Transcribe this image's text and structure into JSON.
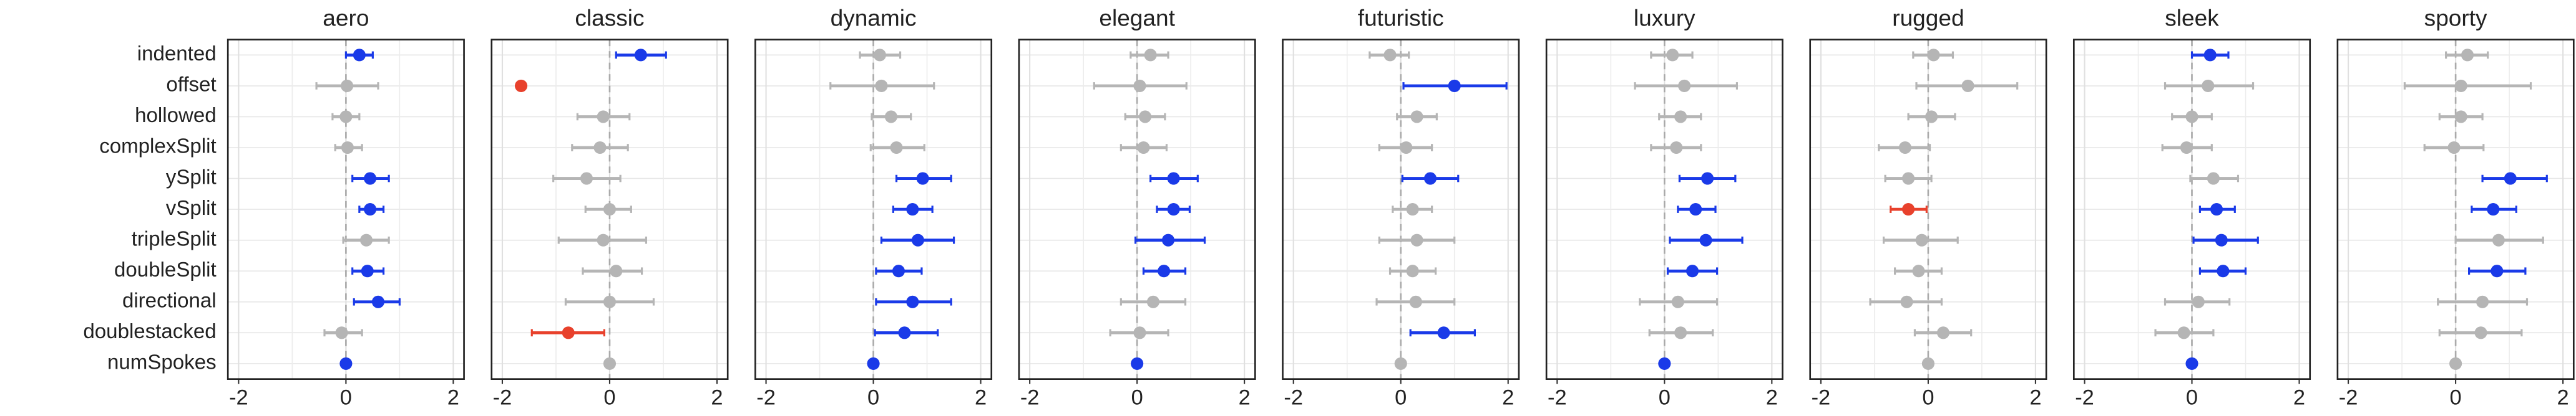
{
  "chart_data": {
    "type": "forest",
    "categories": [
      "indented",
      "offset",
      "hollowed",
      "complexSplit",
      "ySplit",
      "vSplit",
      "tripleSplit",
      "doubleSplit",
      "directional",
      "doublestacked",
      "numSpokes"
    ],
    "xlim": [
      -2.2,
      2.2
    ],
    "xticks": [
      -2,
      0,
      2
    ],
    "grid": true,
    "panels": [
      {
        "title": "aero",
        "values": [
          0.25,
          0.02,
          0.0,
          0.03,
          0.45,
          0.45,
          0.38,
          0.4,
          0.6,
          -0.08,
          0
        ],
        "lo": [
          0.0,
          -0.55,
          -0.25,
          -0.2,
          0.12,
          0.25,
          -0.05,
          0.12,
          0.15,
          -0.4,
          null
        ],
        "hi": [
          0.5,
          0.6,
          0.25,
          0.3,
          0.8,
          0.7,
          0.8,
          0.7,
          1.0,
          0.3,
          null
        ],
        "colors": [
          "#1a3ae8",
          "#b5b5b5",
          "#b5b5b5",
          "#b5b5b5",
          "#1a3ae8",
          "#1a3ae8",
          "#b5b5b5",
          "#1a3ae8",
          "#1a3ae8",
          "#b5b5b5",
          "#1a3ae8"
        ]
      },
      {
        "title": "classic",
        "values": [
          0.58,
          -1.65,
          -0.12,
          -0.18,
          -0.43,
          0.0,
          -0.12,
          0.12,
          0,
          -0.77,
          0
        ],
        "lo": [
          0.12,
          null,
          -0.6,
          -0.7,
          -1.05,
          -0.45,
          -0.95,
          -0.5,
          -0.82,
          -1.45,
          null
        ],
        "hi": [
          1.05,
          null,
          0.37,
          0.34,
          0.2,
          0.4,
          0.68,
          0.6,
          0.82,
          -0.1,
          null
        ],
        "colors": [
          "#1a3ae8",
          "#e8412c",
          "#b5b5b5",
          "#b5b5b5",
          "#b5b5b5",
          "#b5b5b5",
          "#b5b5b5",
          "#b5b5b5",
          "#b5b5b5",
          "#e8412c",
          "#b5b5b5"
        ]
      },
      {
        "title": "dynamic",
        "values": [
          0.12,
          0.15,
          0.33,
          0.43,
          0.92,
          0.73,
          0.83,
          0.47,
          0.73,
          0.58,
          0
        ],
        "lo": [
          -0.25,
          -0.8,
          -0.03,
          -0.05,
          0.43,
          0.37,
          0.15,
          0.05,
          0.05,
          0.03,
          null
        ],
        "hi": [
          0.5,
          1.13,
          0.7,
          0.95,
          1.45,
          1.1,
          1.5,
          0.9,
          1.45,
          1.2,
          null
        ],
        "colors": [
          "#b5b5b5",
          "#b5b5b5",
          "#b5b5b5",
          "#b5b5b5",
          "#1a3ae8",
          "#1a3ae8",
          "#1a3ae8",
          "#1a3ae8",
          "#1a3ae8",
          "#1a3ae8",
          "#1a3ae8"
        ]
      },
      {
        "title": "elegant",
        "values": [
          0.25,
          0.05,
          0.15,
          0.12,
          0.68,
          0.68,
          0.58,
          0.5,
          0.3,
          0.05,
          0
        ],
        "lo": [
          -0.12,
          -0.8,
          -0.22,
          -0.3,
          0.25,
          0.37,
          -0.03,
          0.12,
          -0.3,
          -0.5,
          null
        ],
        "hi": [
          0.58,
          0.92,
          0.52,
          0.55,
          1.13,
          0.98,
          1.26,
          0.9,
          0.9,
          0.58,
          null
        ],
        "colors": [
          "#b5b5b5",
          "#b5b5b5",
          "#b5b5b5",
          "#b5b5b5",
          "#1a3ae8",
          "#1a3ae8",
          "#1a3ae8",
          "#1a3ae8",
          "#b5b5b5",
          "#b5b5b5",
          "#1a3ae8"
        ]
      },
      {
        "title": "futuristic",
        "values": [
          -0.2,
          1.0,
          0.3,
          0.1,
          0.55,
          0.22,
          0.3,
          0.22,
          0.28,
          0.8,
          0
        ],
        "lo": [
          -0.58,
          0.05,
          -0.07,
          -0.4,
          0.03,
          -0.15,
          -0.4,
          -0.2,
          -0.45,
          0.18,
          null
        ],
        "hi": [
          0.15,
          1.97,
          0.67,
          0.58,
          1.07,
          0.58,
          1.0,
          0.65,
          1.0,
          1.38,
          null
        ],
        "colors": [
          "#b5b5b5",
          "#1a3ae8",
          "#b5b5b5",
          "#b5b5b5",
          "#1a3ae8",
          "#b5b5b5",
          "#b5b5b5",
          "#b5b5b5",
          "#b5b5b5",
          "#1a3ae8",
          "#b5b5b5"
        ]
      },
      {
        "title": "luxury",
        "values": [
          0.15,
          0.37,
          0.3,
          0.22,
          0.8,
          0.58,
          0.77,
          0.52,
          0.25,
          0.3,
          0
        ],
        "lo": [
          -0.25,
          -0.55,
          -0.1,
          -0.25,
          0.28,
          0.25,
          0.1,
          0.06,
          -0.46,
          -0.28,
          null
        ],
        "hi": [
          0.52,
          1.35,
          0.68,
          0.68,
          1.32,
          0.95,
          1.45,
          0.98,
          0.98,
          0.9,
          null
        ],
        "colors": [
          "#b5b5b5",
          "#b5b5b5",
          "#b5b5b5",
          "#b5b5b5",
          "#1a3ae8",
          "#1a3ae8",
          "#1a3ae8",
          "#1a3ae8",
          "#b5b5b5",
          "#b5b5b5",
          "#1a3ae8"
        ]
      },
      {
        "title": "rugged",
        "values": [
          0.1,
          0.74,
          0.06,
          -0.43,
          -0.37,
          -0.37,
          -0.12,
          -0.18,
          -0.4,
          0.28,
          0
        ],
        "lo": [
          -0.28,
          -0.22,
          -0.37,
          -0.92,
          -0.8,
          -0.7,
          -0.83,
          -0.62,
          -1.08,
          -0.25,
          null
        ],
        "hi": [
          0.46,
          1.66,
          0.5,
          0.03,
          0.06,
          -0.03,
          0.55,
          0.25,
          0.25,
          0.8,
          null
        ],
        "colors": [
          "#b5b5b5",
          "#b5b5b5",
          "#b5b5b5",
          "#b5b5b5",
          "#b5b5b5",
          "#e8412c",
          "#b5b5b5",
          "#b5b5b5",
          "#b5b5b5",
          "#b5b5b5",
          "#b5b5b5"
        ]
      },
      {
        "title": "sleek",
        "values": [
          0.34,
          0.3,
          0,
          -0.1,
          0.4,
          0.46,
          0.55,
          0.58,
          0.12,
          -0.15,
          0
        ],
        "lo": [
          0.0,
          -0.5,
          -0.37,
          -0.55,
          -0.03,
          0.15,
          0.03,
          0.15,
          -0.5,
          -0.68,
          null
        ],
        "hi": [
          0.68,
          1.14,
          0.37,
          0.37,
          0.86,
          0.8,
          1.23,
          1.0,
          0.7,
          0.4,
          null
        ],
        "colors": [
          "#1a3ae8",
          "#b5b5b5",
          "#b5b5b5",
          "#b5b5b5",
          "#b5b5b5",
          "#1a3ae8",
          "#1a3ae8",
          "#1a3ae8",
          "#b5b5b5",
          "#b5b5b5",
          "#1a3ae8"
        ]
      },
      {
        "title": "sporty",
        "values": [
          0.22,
          0.1,
          0.1,
          -0.03,
          1.02,
          0.7,
          0.8,
          0.77,
          0.5,
          0.47,
          0
        ],
        "lo": [
          -0.18,
          -0.95,
          -0.3,
          -0.58,
          0.5,
          0.3,
          0.0,
          0.25,
          -0.33,
          -0.3,
          null
        ],
        "hi": [
          0.6,
          1.4,
          0.5,
          0.52,
          1.7,
          1.13,
          1.63,
          1.3,
          1.33,
          1.23,
          null
        ],
        "colors": [
          "#b5b5b5",
          "#b5b5b5",
          "#b5b5b5",
          "#b5b5b5",
          "#1a3ae8",
          "#1a3ae8",
          "#b5b5b5",
          "#1a3ae8",
          "#b5b5b5",
          "#b5b5b5",
          "#b5b5b5"
        ]
      }
    ]
  }
}
